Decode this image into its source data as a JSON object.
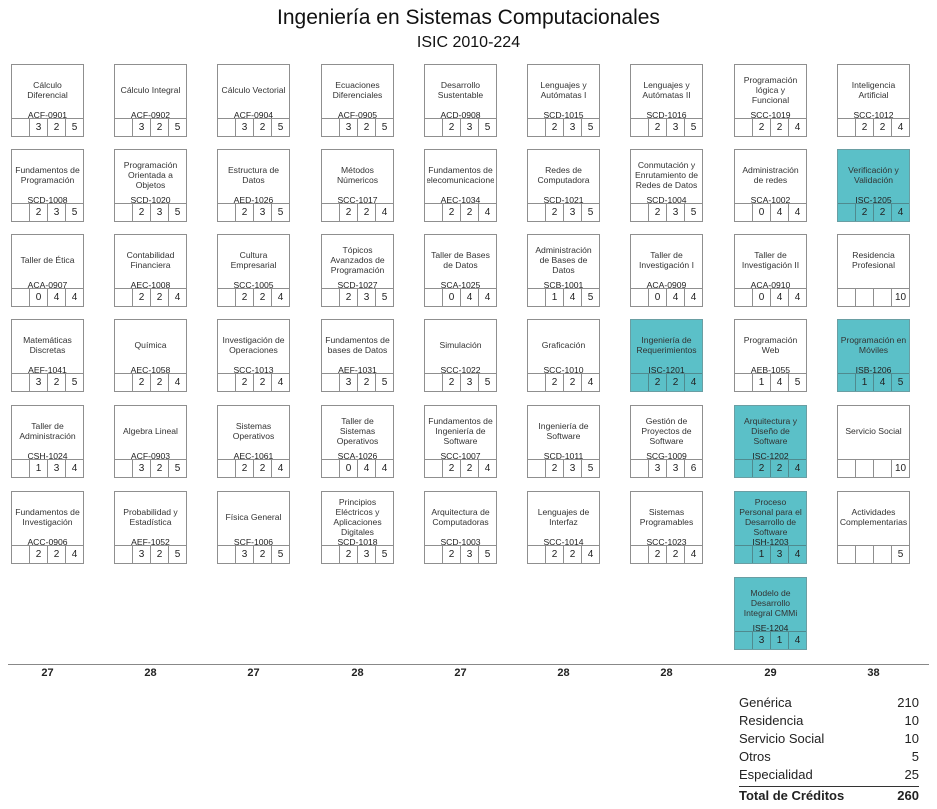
{
  "title": "Ingeniería en Sistemas Computacionales",
  "subtitle": "ISIC 2010-224",
  "columns": [
    [
      {
        "name": "Cálculo Diferencial",
        "code": "ACF-0901",
        "hours": [
          "",
          "3",
          "2",
          "5"
        ]
      },
      {
        "name": "Fundamentos de Programación",
        "code": "SCD-1008",
        "hours": [
          "",
          "2",
          "3",
          "5"
        ]
      },
      {
        "name": "Taller de Ética",
        "code": "ACA-0907",
        "hours": [
          "",
          "0",
          "4",
          "4"
        ]
      },
      {
        "name": "Matemáticas Discretas",
        "code": "AEF-1041",
        "hours": [
          "",
          "3",
          "2",
          "5"
        ]
      },
      {
        "name": "Taller de Administración",
        "code": "CSH-1024",
        "hours": [
          "",
          "1",
          "3",
          "4"
        ]
      },
      {
        "name": "Fundamentos de Investigación",
        "code": "ACC-0906",
        "hours": [
          "",
          "2",
          "2",
          "4"
        ]
      }
    ],
    [
      {
        "name": "Cálculo Integral",
        "code": "ACF-0902",
        "hours": [
          "",
          "3",
          "2",
          "5"
        ]
      },
      {
        "name": "Programación Orientada a Objetos",
        "code": "SCD-1020",
        "hours": [
          "",
          "2",
          "3",
          "5"
        ]
      },
      {
        "name": "Contabilidad Financiera",
        "code": "AEC-1008",
        "hours": [
          "",
          "2",
          "2",
          "4"
        ]
      },
      {
        "name": "Química",
        "code": "AEC-1058",
        "hours": [
          "",
          "2",
          "2",
          "4"
        ]
      },
      {
        "name": "Algebra Lineal",
        "code": "ACF-0903",
        "hours": [
          "",
          "3",
          "2",
          "5"
        ]
      },
      {
        "name": "Probabilidad y Estadística",
        "code": "AEF-1052",
        "hours": [
          "",
          "3",
          "2",
          "5"
        ]
      }
    ],
    [
      {
        "name": "Cálculo Vectorial",
        "code": "ACF-0904",
        "hours": [
          "",
          "3",
          "2",
          "5"
        ]
      },
      {
        "name": "Estructura de Datos",
        "code": "AED-1026",
        "hours": [
          "",
          "2",
          "3",
          "5"
        ]
      },
      {
        "name": "Cultura Empresarial",
        "code": "SCC-1005",
        "hours": [
          "",
          "2",
          "2",
          "4"
        ]
      },
      {
        "name": "Investigación de Operaciones",
        "code": "SCC-1013",
        "hours": [
          "",
          "2",
          "2",
          "4"
        ]
      },
      {
        "name": "Sistemas Operativos",
        "code": "AEC-1061",
        "hours": [
          "",
          "2",
          "2",
          "4"
        ]
      },
      {
        "name": "Física General",
        "code": "SCF-1006",
        "hours": [
          "",
          "3",
          "2",
          "5"
        ]
      }
    ],
    [
      {
        "name": "Ecuaciones Diferenciales",
        "code": "ACF-0905",
        "hours": [
          "",
          "3",
          "2",
          "5"
        ]
      },
      {
        "name": "Métodos Númericos",
        "code": "SCC-1017",
        "hours": [
          "",
          "2",
          "2",
          "4"
        ]
      },
      {
        "name": "Tópicos Avanzados de Programación",
        "code": "SCD-1027",
        "hours": [
          "",
          "2",
          "3",
          "5"
        ]
      },
      {
        "name": "Fundamentos de bases de Datos",
        "code": "AEF-1031",
        "hours": [
          "",
          "3",
          "2",
          "5"
        ]
      },
      {
        "name": "Taller de Sistemas Operativos",
        "code": "SCA-1026",
        "hours": [
          "",
          "0",
          "4",
          "4"
        ]
      },
      {
        "name": "Principios Eléctricos y Aplicaciones Digitales",
        "code": "SCD-1018",
        "hours": [
          "",
          "2",
          "3",
          "5"
        ]
      }
    ],
    [
      {
        "name": "Desarrollo Sustentable",
        "code": "ACD-0908",
        "hours": [
          "",
          "2",
          "3",
          "5"
        ]
      },
      {
        "name": "Fundamentos de Telecomunicaciones",
        "code": "AEC-1034",
        "hours": [
          "",
          "2",
          "2",
          "4"
        ]
      },
      {
        "name": "Taller de Bases de Datos",
        "code": "SCA-1025",
        "hours": [
          "",
          "0",
          "4",
          "4"
        ]
      },
      {
        "name": "Simulación",
        "code": "SCC-1022",
        "hours": [
          "",
          "2",
          "3",
          "5"
        ]
      },
      {
        "name": "Fundamentos de Ingeniería de Software",
        "code": "SCC-1007",
        "hours": [
          "",
          "2",
          "2",
          "4"
        ]
      },
      {
        "name": "Arquitectura de Computadoras",
        "code": "SCD-1003",
        "hours": [
          "",
          "2",
          "3",
          "5"
        ]
      }
    ],
    [
      {
        "name": "Lenguajes y Autómatas I",
        "code": "SCD-1015",
        "hours": [
          "",
          "2",
          "3",
          "5"
        ]
      },
      {
        "name": "Redes de Computadora",
        "code": "SCD-1021",
        "hours": [
          "",
          "2",
          "3",
          "5"
        ]
      },
      {
        "name": "Administración de Bases de Datos",
        "code": "SCB-1001",
        "hours": [
          "",
          "1",
          "4",
          "5"
        ]
      },
      {
        "name": "Graficación",
        "code": "SCC-1010",
        "hours": [
          "",
          "2",
          "2",
          "4"
        ]
      },
      {
        "name": "Ingeniería de Software",
        "code": "SCD-1011",
        "hours": [
          "",
          "2",
          "3",
          "5"
        ]
      },
      {
        "name": "Lenguajes de Interfaz",
        "code": "SCC-1014",
        "hours": [
          "",
          "2",
          "2",
          "4"
        ]
      }
    ],
    [
      {
        "name": "Lenguajes y Autómatas II",
        "code": "SCD-1016",
        "hours": [
          "",
          "2",
          "3",
          "5"
        ]
      },
      {
        "name": "Conmutación y Enrutamiento de Redes de Datos",
        "code": "SCD-1004",
        "hours": [
          "",
          "2",
          "3",
          "5"
        ]
      },
      {
        "name": "Taller de Investigación I",
        "code": "ACA-0909",
        "hours": [
          "",
          "0",
          "4",
          "4"
        ]
      },
      {
        "name": "Ingeniería de Requerimientos",
        "code": "ISC-1201",
        "hours": [
          "",
          "2",
          "2",
          "4"
        ],
        "spec": true
      },
      {
        "name": "Gestión de Proyectos de Software",
        "code": "SCG-1009",
        "hours": [
          "",
          "3",
          "3",
          "6"
        ]
      },
      {
        "name": "Sistemas Programables",
        "code": "SCC-1023",
        "hours": [
          "",
          "2",
          "2",
          "4"
        ]
      }
    ],
    [
      {
        "name": "Programación lógica y Funcional",
        "code": "SCC-1019",
        "hours": [
          "",
          "2",
          "2",
          "4"
        ]
      },
      {
        "name": "Administración de redes",
        "code": "SCA-1002",
        "hours": [
          "",
          "0",
          "4",
          "4"
        ]
      },
      {
        "name": "Taller de Investigación II",
        "code": "ACA-0910",
        "hours": [
          "",
          "0",
          "4",
          "4"
        ]
      },
      {
        "name": "Programación Web",
        "code": "AEB-1055",
        "hours": [
          "",
          "1",
          "4",
          "5"
        ]
      },
      {
        "name": "Arquitectura y Diseño de Software",
        "code": "ISC-1202",
        "hours": [
          "",
          "2",
          "2",
          "4"
        ],
        "spec": true
      },
      {
        "name": "Proceso Personal para el Desarrollo de Software",
        "code": "ISH-1203",
        "hours": [
          "",
          "1",
          "3",
          "4"
        ],
        "spec": true
      },
      {
        "name": "Modelo de Desarrollo Integral CMMi",
        "code": "ISE-1204",
        "hours": [
          "",
          "3",
          "1",
          "4"
        ],
        "spec": true
      }
    ],
    [
      {
        "name": "Inteligencia Artificial",
        "code": "SCC-1012",
        "hours": [
          "",
          "2",
          "2",
          "4"
        ]
      },
      {
        "name": "Verificación y Validación",
        "code": "ISC-1205",
        "hours": [
          "",
          "2",
          "2",
          "4"
        ],
        "spec": true
      },
      {
        "name": "Residencia Profesional",
        "code": "",
        "hours": [
          "",
          "",
          "",
          "10"
        ]
      },
      {
        "name": "Programación en Móviles",
        "code": "ISB-1206",
        "hours": [
          "",
          "1",
          "4",
          "5"
        ],
        "spec": true
      },
      {
        "name": "Servicio Social",
        "code": "",
        "hours": [
          "",
          "",
          "",
          "10"
        ]
      },
      {
        "name": "Actividades Complementarias",
        "code": "",
        "hours": [
          "",
          "",
          "",
          "5"
        ]
      }
    ]
  ],
  "column_totals": [
    "27",
    "28",
    "27",
    "28",
    "27",
    "28",
    "28",
    "29",
    "38"
  ],
  "summary": {
    "rows": [
      {
        "label": "Genérica",
        "value": "210"
      },
      {
        "label": "Residencia",
        "value": "10"
      },
      {
        "label": "Servicio Social",
        "value": "10"
      },
      {
        "label": "Otros",
        "value": "5"
      },
      {
        "label": "Especialidad",
        "value": "25"
      }
    ],
    "total_label": "Total de Créditos",
    "total_value": "260"
  },
  "colors": {
    "specialty": "#5bc0c8",
    "border": "#8f8f8f"
  }
}
